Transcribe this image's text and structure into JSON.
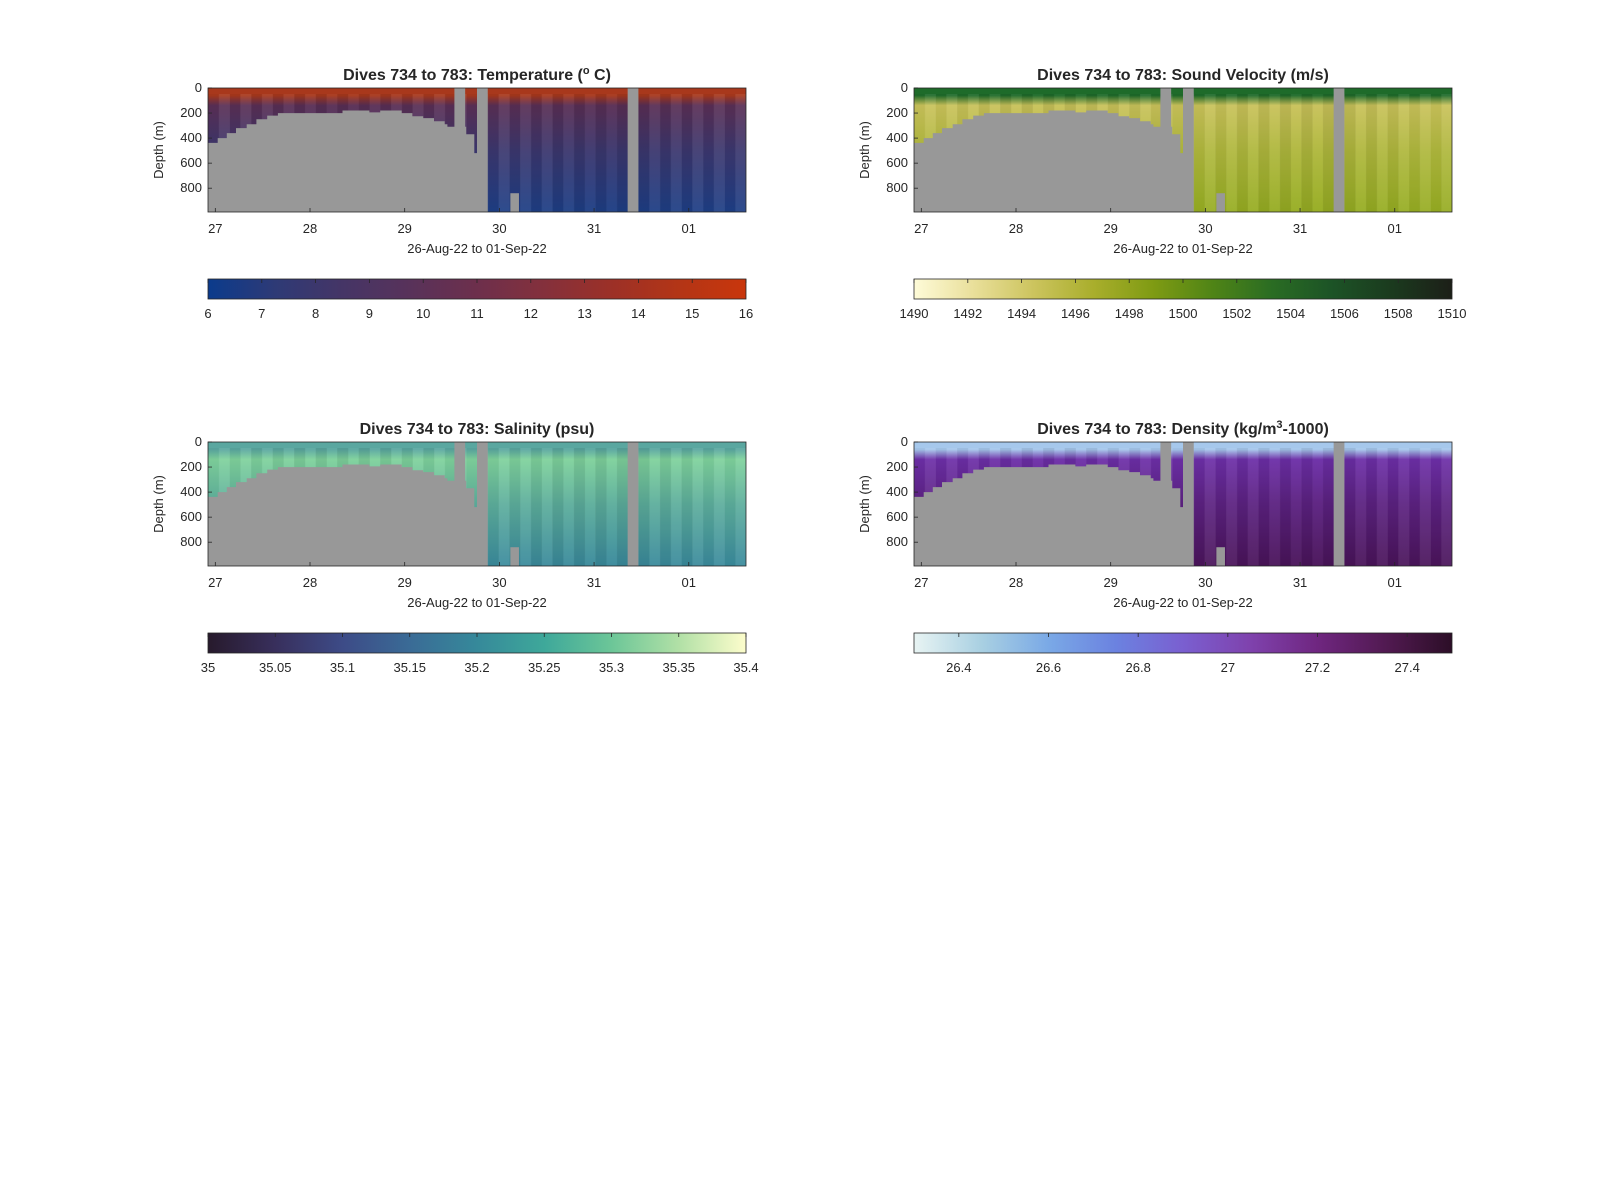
{
  "chart_data": [
    {
      "type": "heatmap",
      "title": "Dives 734 to 783: Temperature (",
      "title_unit_sup": "o",
      "title_tail": " C)",
      "xlabel": "26-Aug-22 to 01-Sep-22",
      "ylabel": "Depth (m)",
      "x_tick_labels": [
        "27",
        "28",
        "29",
        "30",
        "31",
        "01"
      ],
      "y_tick_labels": [
        "0",
        "200",
        "400",
        "600",
        "800"
      ],
      "y_ticks": [
        0,
        200,
        400,
        600,
        800
      ],
      "ylim": [
        0,
        990
      ],
      "colorbar": {
        "min": 6,
        "max": 16,
        "tick_labels": [
          "6",
          "7",
          "8",
          "9",
          "10",
          "11",
          "12",
          "13",
          "14",
          "15",
          "16"
        ],
        "colors": [
          "#0b3b8c",
          "#2e3a76",
          "#453566",
          "#58325a",
          "#6d2f4c",
          "#84303c",
          "#9c3027",
          "#b33516",
          "#c9360c"
        ]
      },
      "profile_colors": {
        "surface": "#a8381c",
        "upper": "#5a2f55",
        "deep": "#1e3f86"
      },
      "missing_color": "#989898"
    },
    {
      "type": "heatmap",
      "title": "Dives 734 to 783: Sound Velocity (m/s)",
      "xlabel": "26-Aug-22 to 01-Sep-22",
      "ylabel": "Depth (m)",
      "x_tick_labels": [
        "27",
        "28",
        "29",
        "30",
        "31",
        "01"
      ],
      "y_tick_labels": [
        "0",
        "200",
        "400",
        "600",
        "800"
      ],
      "y_ticks": [
        0,
        200,
        400,
        600,
        800
      ],
      "ylim": [
        0,
        990
      ],
      "colorbar": {
        "min": 1490,
        "max": 1510,
        "tick_labels": [
          "1490",
          "1492",
          "1494",
          "1496",
          "1498",
          "1500",
          "1502",
          "1504",
          "1506",
          "1508",
          "1510"
        ],
        "colors": [
          "#fefbd8",
          "#e9df9a",
          "#ccc45e",
          "#a9ae2c",
          "#7f9b13",
          "#4f8416",
          "#2a6c23",
          "#1c5326",
          "#1b3a1e",
          "#1c1f18"
        ]
      },
      "profile_colors": {
        "surface": "#1e6b2a",
        "upper": "#c9c25a",
        "deep": "#96ad22"
      },
      "missing_color": "#989898"
    },
    {
      "type": "heatmap",
      "title": "Dives 734 to 783: Salinity (psu)",
      "xlabel": "26-Aug-22 to 01-Sep-22",
      "ylabel": "Depth (m)",
      "x_tick_labels": [
        "27",
        "28",
        "29",
        "30",
        "31",
        "01"
      ],
      "y_tick_labels": [
        "0",
        "200",
        "400",
        "600",
        "800"
      ],
      "y_ticks": [
        0,
        200,
        400,
        600,
        800
      ],
      "ylim": [
        0,
        990
      ],
      "colorbar": {
        "min": 35,
        "max": 35.4,
        "tick_labels": [
          "35",
          "35.05",
          "35.1",
          "35.15",
          "35.2",
          "35.25",
          "35.3",
          "35.35",
          "35.4"
        ],
        "colors": [
          "#271a2c",
          "#382f5c",
          "#3d4b87",
          "#3a6b96",
          "#36899a",
          "#3ea89a",
          "#6cc698",
          "#b1e0a6",
          "#fdfdcc"
        ]
      },
      "profile_colors": {
        "surface": "#5aa7a0",
        "upper": "#7fd29c",
        "deep": "#3a8a9c"
      },
      "missing_color": "#989898"
    },
    {
      "type": "heatmap",
      "title": "Dives 734 to 783: Density (kg/m",
      "title_unit_sup": "3",
      "title_tail": "-1000)",
      "xlabel": "26-Aug-22 to 01-Sep-22",
      "ylabel": "Depth (m)",
      "x_tick_labels": [
        "27",
        "28",
        "29",
        "30",
        "31",
        "01"
      ],
      "y_tick_labels": [
        "0",
        "200",
        "400",
        "600",
        "800"
      ],
      "y_ticks": [
        0,
        200,
        400,
        600,
        800
      ],
      "ylim": [
        0,
        990
      ],
      "colorbar": {
        "min": 26.3,
        "max": 27.5,
        "tick_labels": [
          "26.4",
          "26.6",
          "26.8",
          "27",
          "27.2",
          "27.4"
        ],
        "tick_values": [
          26.4,
          26.6,
          26.8,
          27.0,
          27.2,
          27.4
        ],
        "colors": [
          "#e8f4f3",
          "#a9d0e2",
          "#7aa9e6",
          "#6b82e0",
          "#7a5fd0",
          "#7f42ad",
          "#6f2680",
          "#521a52",
          "#2c0e27"
        ]
      },
      "profile_colors": {
        "surface": "#a6c8ec",
        "upper": "#6d2fa8",
        "deep": "#4a145a"
      },
      "missing_color": "#989898"
    }
  ]
}
